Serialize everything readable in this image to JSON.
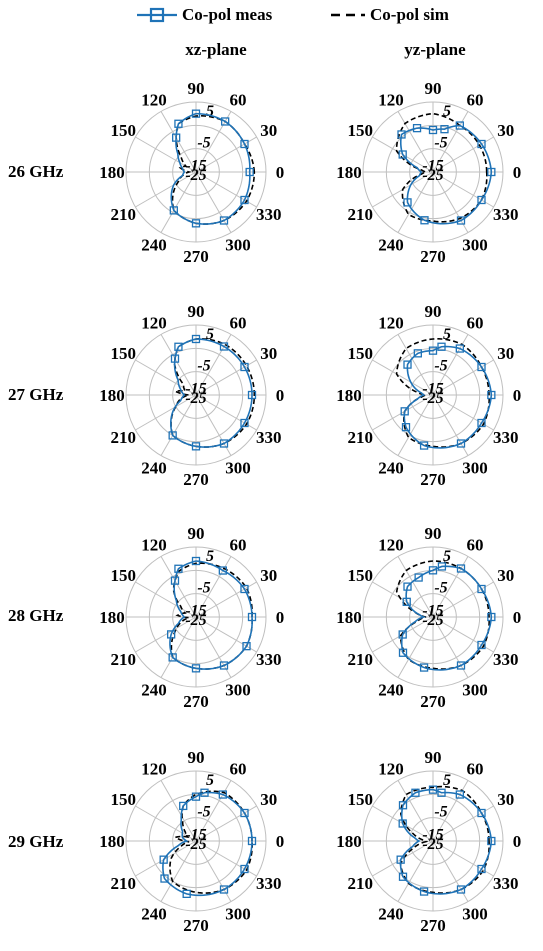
{
  "legend": {
    "meas_label": "Co-pol meas",
    "sim_label": "Co-pol sim"
  },
  "colors": {
    "meas": "#1f73b7",
    "sim": "#000000",
    "grid": "#bfbfbf"
  },
  "column_titles": [
    "xz-plane",
    "yz-plane"
  ],
  "row_labels": [
    "26 GHz",
    "27 GHz",
    "28 GHz",
    "29 GHz"
  ],
  "chart_data": {
    "type": "polar",
    "radial_range_db": [
      -25,
      5
    ],
    "radial_tick_labels": [
      "5",
      "-5",
      "-15",
      "-25"
    ],
    "angle_tick_labels": [
      "0",
      "30",
      "60",
      "90",
      "120",
      "150",
      "180",
      "210",
      "240",
      "270",
      "300",
      "330"
    ],
    "grid": true,
    "legend_position": "top",
    "series_names": [
      "Co-pol meas",
      "Co-pol sim"
    ],
    "panels": [
      {
        "row": "26 GHz",
        "plane": "xz-plane",
        "meas": [
          [
            0,
            -2
          ],
          [
            30,
            -1
          ],
          [
            60,
            0
          ],
          [
            90,
            0
          ],
          [
            110,
            -3
          ],
          [
            120,
            -8
          ],
          [
            135,
            -14
          ],
          [
            150,
            -17
          ],
          [
            165,
            -19
          ],
          [
            180,
            -20
          ],
          [
            195,
            -19
          ],
          [
            210,
            -14
          ],
          [
            240,
            -6
          ],
          [
            270,
            -3
          ],
          [
            300,
            -1
          ],
          [
            330,
            -1
          ]
        ],
        "sim": [
          [
            0,
            0
          ],
          [
            30,
            -1
          ],
          [
            60,
            0
          ],
          [
            90,
            -1
          ],
          [
            110,
            -3
          ],
          [
            120,
            -8
          ],
          [
            135,
            -16
          ],
          [
            150,
            -20
          ],
          [
            165,
            -18
          ],
          [
            180,
            -22
          ],
          [
            195,
            -19
          ],
          [
            210,
            -16
          ],
          [
            240,
            -6
          ],
          [
            270,
            -3
          ],
          [
            300,
            -1
          ],
          [
            330,
            0
          ]
        ]
      },
      {
        "row": "26 GHz",
        "plane": "yz-plane",
        "meas": [
          [
            0,
            0
          ],
          [
            30,
            -1
          ],
          [
            60,
            -2
          ],
          [
            75,
            -6
          ],
          [
            90,
            -7
          ],
          [
            110,
            -5
          ],
          [
            130,
            -4
          ],
          [
            150,
            -10
          ],
          [
            165,
            -18
          ],
          [
            180,
            -20
          ],
          [
            195,
            -19
          ],
          [
            210,
            -14
          ],
          [
            230,
            -8
          ],
          [
            260,
            -4
          ],
          [
            300,
            -1
          ],
          [
            330,
            -1
          ]
        ],
        "sim": [
          [
            0,
            -2
          ],
          [
            30,
            -2
          ],
          [
            60,
            -2
          ],
          [
            90,
            0
          ],
          [
            120,
            -1
          ],
          [
            150,
            -7
          ],
          [
            170,
            -20
          ],
          [
            180,
            -22
          ],
          [
            190,
            -20
          ],
          [
            210,
            -10
          ],
          [
            240,
            -4
          ],
          [
            270,
            -4
          ],
          [
            300,
            -2
          ],
          [
            330,
            -1
          ]
        ]
      },
      {
        "row": "27 GHz",
        "plane": "xz-plane",
        "meas": [
          [
            0,
            -1
          ],
          [
            30,
            -1
          ],
          [
            60,
            -1
          ],
          [
            90,
            -1
          ],
          [
            110,
            -3
          ],
          [
            120,
            -7
          ],
          [
            140,
            -15
          ],
          [
            160,
            -18
          ],
          [
            180,
            -20
          ],
          [
            200,
            -18
          ],
          [
            215,
            -13
          ],
          [
            240,
            -5
          ],
          [
            270,
            -3
          ],
          [
            300,
            -1
          ],
          [
            330,
            -1
          ]
        ],
        "sim": [
          [
            0,
            0
          ],
          [
            30,
            0
          ],
          [
            60,
            0
          ],
          [
            90,
            -1
          ],
          [
            110,
            -3
          ],
          [
            125,
            -9
          ],
          [
            140,
            -18
          ],
          [
            160,
            -20
          ],
          [
            170,
            -16
          ],
          [
            180,
            -22
          ],
          [
            195,
            -18
          ],
          [
            210,
            -15
          ],
          [
            240,
            -5
          ],
          [
            270,
            -3
          ],
          [
            300,
            -1
          ],
          [
            330,
            0
          ]
        ]
      },
      {
        "row": "27 GHz",
        "plane": "yz-plane",
        "meas": [
          [
            0,
            0
          ],
          [
            30,
            -1
          ],
          [
            60,
            -2
          ],
          [
            80,
            -4
          ],
          [
            90,
            -6
          ],
          [
            110,
            -6
          ],
          [
            130,
            -8
          ],
          [
            150,
            -14
          ],
          [
            170,
            -20
          ],
          [
            180,
            -21
          ],
          [
            195,
            -18
          ],
          [
            210,
            -11
          ],
          [
            230,
            -7
          ],
          [
            260,
            -3
          ],
          [
            300,
            -1
          ],
          [
            330,
            -1
          ]
        ],
        "sim": [
          [
            0,
            -1
          ],
          [
            30,
            -1
          ],
          [
            60,
            0
          ],
          [
            90,
            -1
          ],
          [
            120,
            -2
          ],
          [
            150,
            -7
          ],
          [
            170,
            -18
          ],
          [
            180,
            -22
          ],
          [
            190,
            -20
          ],
          [
            210,
            -11
          ],
          [
            240,
            -4
          ],
          [
            270,
            -3
          ],
          [
            300,
            -1
          ],
          [
            330,
            0
          ]
        ]
      },
      {
        "row": "28 GHz",
        "plane": "xz-plane",
        "meas": [
          [
            0,
            -1
          ],
          [
            30,
            -1
          ],
          [
            60,
            -2
          ],
          [
            90,
            -1
          ],
          [
            110,
            -3
          ],
          [
            120,
            -7
          ],
          [
            140,
            -14
          ],
          [
            160,
            -18
          ],
          [
            180,
            -20
          ],
          [
            200,
            -17
          ],
          [
            215,
            -12
          ],
          [
            240,
            -5
          ],
          [
            270,
            -3
          ],
          [
            300,
            -1
          ],
          [
            330,
            0
          ]
        ],
        "sim": [
          [
            0,
            -1
          ],
          [
            30,
            0
          ],
          [
            60,
            -1
          ],
          [
            90,
            -2
          ],
          [
            110,
            -4
          ],
          [
            130,
            -10
          ],
          [
            145,
            -17
          ],
          [
            160,
            -20
          ],
          [
            175,
            -17
          ],
          [
            185,
            -22
          ],
          [
            200,
            -18
          ],
          [
            215,
            -14
          ],
          [
            240,
            -5
          ],
          [
            270,
            -3
          ],
          [
            300,
            -1
          ],
          [
            330,
            0
          ]
        ]
      },
      {
        "row": "28 GHz",
        "plane": "yz-plane",
        "meas": [
          [
            0,
            0
          ],
          [
            30,
            -1
          ],
          [
            60,
            -1
          ],
          [
            80,
            -3
          ],
          [
            90,
            -5
          ],
          [
            110,
            -7
          ],
          [
            130,
            -8
          ],
          [
            150,
            -12
          ],
          [
            170,
            -19
          ],
          [
            180,
            -21
          ],
          [
            195,
            -17
          ],
          [
            210,
            -10
          ],
          [
            230,
            -5
          ],
          [
            260,
            -3
          ],
          [
            300,
            -1
          ],
          [
            330,
            -1
          ]
        ],
        "sim": [
          [
            0,
            -1
          ],
          [
            30,
            -1
          ],
          [
            60,
            -1
          ],
          [
            90,
            -1
          ],
          [
            120,
            -2
          ],
          [
            145,
            -6
          ],
          [
            165,
            -17
          ],
          [
            180,
            -22
          ],
          [
            195,
            -18
          ],
          [
            210,
            -9
          ],
          [
            240,
            -4
          ],
          [
            270,
            -3
          ],
          [
            300,
            -1
          ],
          [
            330,
            0
          ]
        ]
      },
      {
        "row": "29 GHz",
        "plane": "xz-plane",
        "meas": [
          [
            0,
            -1
          ],
          [
            30,
            -1
          ],
          [
            60,
            -2
          ],
          [
            80,
            -4
          ],
          [
            90,
            -6
          ],
          [
            110,
            -9
          ],
          [
            125,
            -14
          ],
          [
            145,
            -18
          ],
          [
            165,
            -19
          ],
          [
            180,
            -21
          ],
          [
            195,
            -17
          ],
          [
            210,
            -9
          ],
          [
            230,
            -4
          ],
          [
            260,
            -2
          ],
          [
            300,
            -1
          ],
          [
            330,
            -1
          ]
        ],
        "sim": [
          [
            0,
            -1
          ],
          [
            30,
            -1
          ],
          [
            60,
            -1
          ],
          [
            90,
            -5
          ],
          [
            110,
            -9
          ],
          [
            125,
            -15
          ],
          [
            140,
            -19
          ],
          [
            155,
            -21
          ],
          [
            170,
            -16
          ],
          [
            185,
            -22
          ],
          [
            200,
            -18
          ],
          [
            215,
            -12
          ],
          [
            240,
            -5
          ],
          [
            270,
            -3
          ],
          [
            300,
            -1
          ],
          [
            330,
            0
          ]
        ]
      },
      {
        "row": "29 GHz",
        "plane": "yz-plane",
        "meas": [
          [
            0,
            0
          ],
          [
            30,
            -1
          ],
          [
            60,
            -2
          ],
          [
            80,
            -4
          ],
          [
            90,
            -3
          ],
          [
            110,
            -3
          ],
          [
            130,
            -5
          ],
          [
            150,
            -10
          ],
          [
            170,
            -17
          ],
          [
            180,
            -19
          ],
          [
            195,
            -16
          ],
          [
            210,
            -9
          ],
          [
            230,
            -5
          ],
          [
            260,
            -3
          ],
          [
            300,
            -1
          ],
          [
            330,
            -1
          ]
        ],
        "sim": [
          [
            0,
            -1
          ],
          [
            30,
            -1
          ],
          [
            60,
            0
          ],
          [
            90,
            -2
          ],
          [
            120,
            -2
          ],
          [
            140,
            -7
          ],
          [
            160,
            -16
          ],
          [
            175,
            -21
          ],
          [
            185,
            -22
          ],
          [
            200,
            -16
          ],
          [
            215,
            -8
          ],
          [
            240,
            -4
          ],
          [
            270,
            -3
          ],
          [
            300,
            -1
          ],
          [
            330,
            0
          ]
        ]
      }
    ]
  }
}
